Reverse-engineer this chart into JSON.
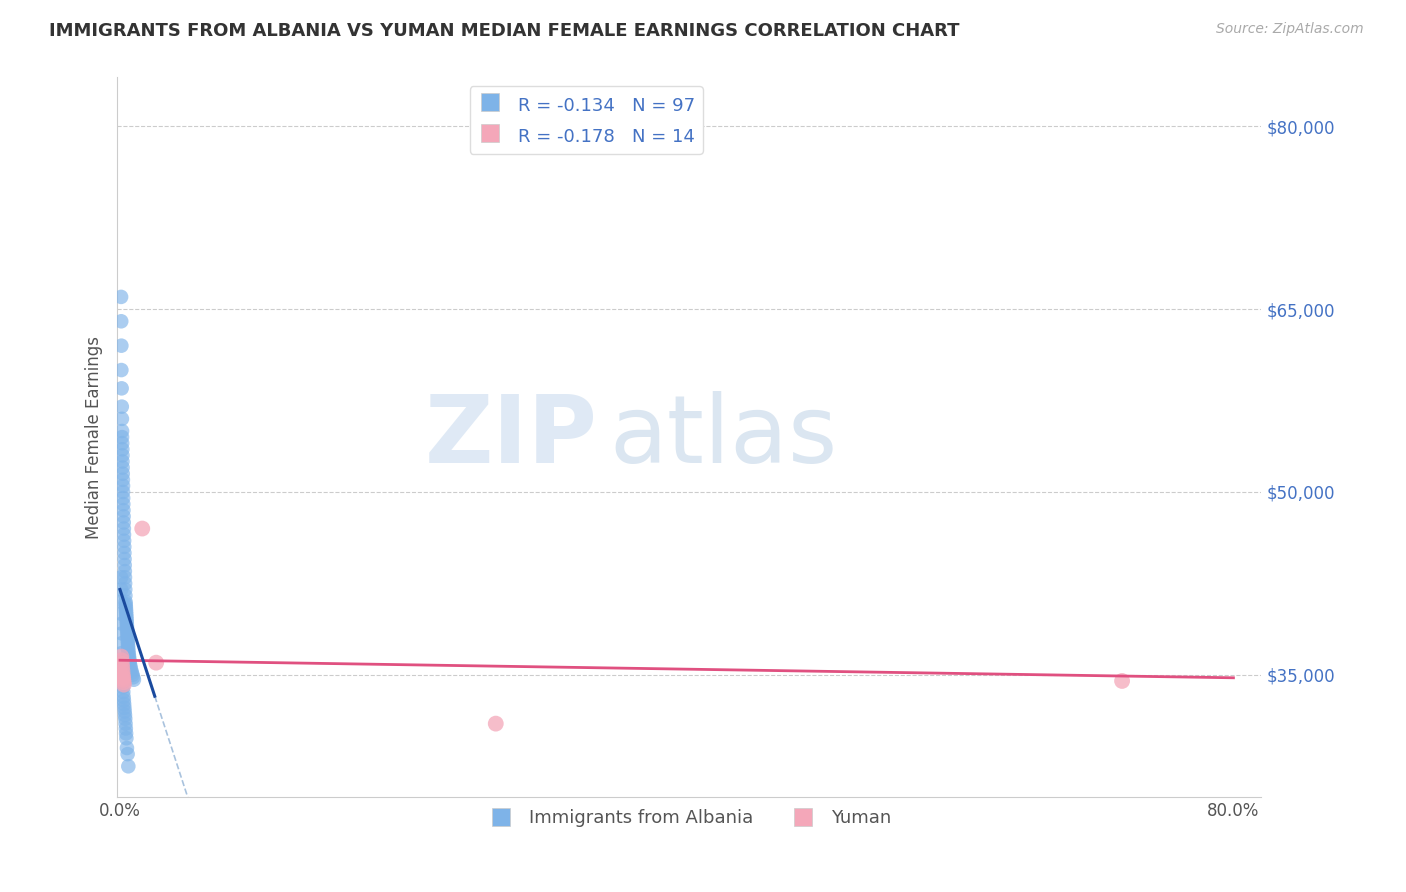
{
  "title": "IMMIGRANTS FROM ALBANIA VS YUMAN MEDIAN FEMALE EARNINGS CORRELATION CHART",
  "source": "Source: ZipAtlas.com",
  "ylabel": "Median Female Earnings",
  "y_ticks": [
    35000,
    50000,
    65000,
    80000
  ],
  "y_tick_labels": [
    "$35,000",
    "$50,000",
    "$65,000",
    "$80,000"
  ],
  "ylim": [
    25000,
    84000
  ],
  "xlim": [
    -0.002,
    0.82
  ],
  "blue_color": "#7EB3E8",
  "blue_line_color": "#1a4a9e",
  "pink_color": "#F4A7B9",
  "pink_line_color": "#E05080",
  "gray_dashed_color": "#9ab8d8",
  "ytick_color": "#4472C4",
  "legend_r_blue": "R = -0.134",
  "legend_n_blue": "N = 97",
  "legend_r_pink": "R = -0.178",
  "legend_n_pink": "N = 14",
  "watermark_zip": "ZIP",
  "watermark_atlas": "atlas",
  "blue_scatter_x": [
    0.0008,
    0.0009,
    0.001,
    0.001,
    0.0012,
    0.0013,
    0.0014,
    0.0015,
    0.0015,
    0.0016,
    0.0017,
    0.0018,
    0.0018,
    0.0019,
    0.002,
    0.0021,
    0.0022,
    0.0022,
    0.0023,
    0.0024,
    0.0025,
    0.0026,
    0.0027,
    0.0028,
    0.0029,
    0.003,
    0.0031,
    0.0032,
    0.0033,
    0.0034,
    0.0035,
    0.0036,
    0.0037,
    0.0038,
    0.0039,
    0.004,
    0.0041,
    0.0042,
    0.0043,
    0.0044,
    0.0045,
    0.0046,
    0.0047,
    0.0048,
    0.0049,
    0.005,
    0.0051,
    0.0052,
    0.0053,
    0.0054,
    0.0055,
    0.0056,
    0.0057,
    0.0058,
    0.0059,
    0.006,
    0.0062,
    0.0064,
    0.0066,
    0.0068,
    0.007,
    0.0073,
    0.0076,
    0.008,
    0.0085,
    0.009,
    0.0095,
    0.01,
    0.0008,
    0.0009,
    0.001,
    0.0011,
    0.0012,
    0.0013,
    0.0014,
    0.0015,
    0.0016,
    0.0017,
    0.0018,
    0.0019,
    0.002,
    0.0022,
    0.0024,
    0.0026,
    0.0028,
    0.003,
    0.0032,
    0.0034,
    0.0036,
    0.0038,
    0.004,
    0.0042,
    0.0044,
    0.0046,
    0.005,
    0.0055,
    0.006
  ],
  "blue_scatter_y": [
    66000,
    64000,
    62000,
    60000,
    58500,
    57000,
    56000,
    55000,
    54500,
    54000,
    53500,
    53000,
    52500,
    52000,
    51500,
    51000,
    50500,
    50000,
    49500,
    49000,
    48500,
    48000,
    47500,
    47000,
    46500,
    46000,
    45500,
    45000,
    44500,
    44000,
    43500,
    43000,
    42500,
    42000,
    41500,
    41000,
    40800,
    40600,
    40400,
    40200,
    40000,
    39800,
    39600,
    39400,
    39200,
    39000,
    38800,
    38600,
    38400,
    38200,
    38000,
    37800,
    37600,
    37400,
    37200,
    37000,
    36800,
    36600,
    36400,
    36200,
    36000,
    35800,
    35600,
    35400,
    35200,
    35000,
    34800,
    34600,
    43000,
    42000,
    41000,
    40000,
    39200,
    38400,
    37600,
    36800,
    36200,
    35700,
    35200,
    34800,
    34400,
    34000,
    33600,
    33200,
    32900,
    32600,
    32300,
    32000,
    31700,
    31400,
    31000,
    30600,
    30200,
    29800,
    29000,
    28500,
    27500
  ],
  "pink_scatter_x": [
    0.001,
    0.0012,
    0.0014,
    0.0016,
    0.0018,
    0.002,
    0.0022,
    0.0024,
    0.0026,
    0.0028,
    0.016,
    0.026,
    0.27,
    0.72
  ],
  "pink_scatter_y": [
    36500,
    36200,
    35900,
    35600,
    35300,
    35000,
    34800,
    34600,
    34400,
    34200,
    47000,
    36000,
    31000,
    34500
  ]
}
